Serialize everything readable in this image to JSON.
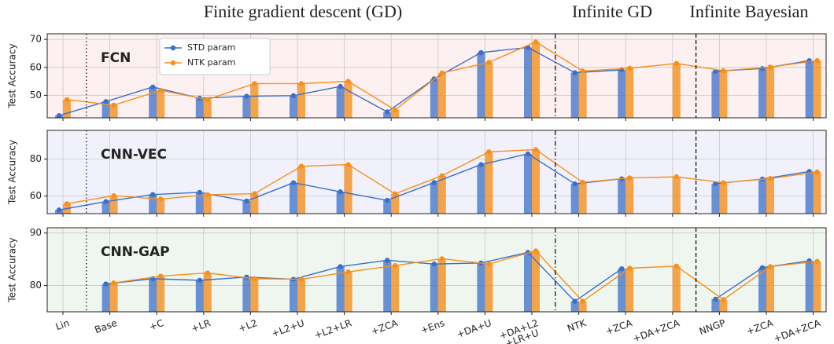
{
  "sections": [
    "Finite gradient descent (GD)",
    "Infinite GD",
    "Infinite Bayesian"
  ],
  "chart_data": [
    {
      "type": "bar_line",
      "title": "FCN",
      "ylabel": "Test Accuracy",
      "ylim": [
        42,
        72
      ],
      "yticks": [
        50,
        60,
        70
      ],
      "grid": true,
      "legend": "upper left",
      "background": "#fdf0f0",
      "series": [
        {
          "name": "STD param",
          "color": "#3b6fc9",
          "values": [
            42.8,
            47.8,
            53,
            49,
            49.7,
            49.9,
            53.2,
            44.1,
            55.9,
            65.3,
            67.1,
            58.1,
            59.1,
            null,
            58.6,
            59.6,
            62.4
          ]
        },
        {
          "name": "NTK param",
          "color": "#f5901e",
          "values": [
            48.5,
            46.5,
            51.8,
            48.5,
            54.2,
            54.2,
            55,
            44.8,
            58,
            61.8,
            69.1,
            58.7,
            59.7,
            61.4,
            58.8,
            60.1,
            62.4
          ]
        }
      ]
    },
    {
      "type": "bar_line",
      "title": "CNN-VEC",
      "ylabel": "Test Accuracy",
      "ylim": [
        50.5,
        95.5
      ],
      "yticks": [
        60,
        80
      ],
      "grid": true,
      "background": "#f1f1fc",
      "series": [
        {
          "color": "#3b6fc9",
          "values": [
            52.5,
            57,
            60.8,
            62,
            57.3,
            67.2,
            62.3,
            57.7,
            67.3,
            77,
            82.8,
            66.6,
            69.3,
            null,
            66.7,
            69.2,
            73.3
          ]
        },
        {
          "color": "#f5901e",
          "values": [
            55.9,
            60.2,
            58.4,
            60.7,
            61.3,
            76.1,
            77,
            61.2,
            71,
            83.9,
            85.1,
            67.4,
            69.8,
            70.4,
            67.2,
            69.5,
            73
          ]
        }
      ]
    },
    {
      "type": "bar_line",
      "title": "CNN-GAP",
      "ylabel": "Test Accuracy",
      "ylim": [
        75,
        91
      ],
      "yticks": [
        80,
        90
      ],
      "grid": true,
      "background": "#eff6ef",
      "categories": [
        "Lin",
        "Base",
        "+C",
        "+LR",
        "+L2",
        "+L2+U",
        "+L2+LR",
        "+ZCA",
        "+Ens",
        "+DA+U",
        "+DA+L2\n+LR+U",
        "NTK",
        "+ZCA",
        "+DA+ZCA",
        "NNGP",
        "+ZCA",
        "+DA+ZCA"
      ],
      "series": [
        {
          "color": "#3b6fc9",
          "values": [
            null,
            80.3,
            81.3,
            81,
            81.6,
            81.2,
            83.6,
            84.8,
            84.1,
            84.3,
            86.3,
            77,
            83.2,
            null,
            77.4,
            83.4,
            84.7
          ]
        },
        {
          "color": "#f5901e",
          "values": [
            null,
            80.5,
            81.8,
            82.4,
            81.3,
            81.2,
            82.6,
            83.8,
            85.1,
            84.1,
            86.6,
            77,
            83.3,
            83.7,
            77.3,
            83.6,
            84.6
          ]
        }
      ]
    }
  ]
}
